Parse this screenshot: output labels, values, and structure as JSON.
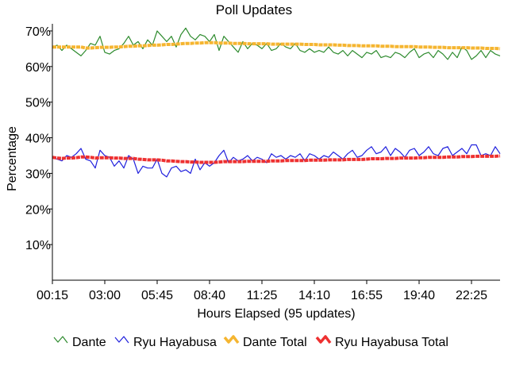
{
  "chart_data": {
    "type": "line",
    "title": "Poll Updates",
    "xlabel": "Hours Elapsed (95 updates)",
    "ylabel": "Percentage",
    "ylim": [
      0,
      72
    ],
    "yticks": [
      {
        "value": 10,
        "label": "10%"
      },
      {
        "value": 20,
        "label": "20%"
      },
      {
        "value": 30,
        "label": "30%"
      },
      {
        "value": 40,
        "label": "40%"
      },
      {
        "value": 50,
        "label": "50%"
      },
      {
        "value": 60,
        "label": "60%"
      },
      {
        "value": 70,
        "label": "70%"
      }
    ],
    "xlim": [
      0,
      94
    ],
    "xticks": [
      {
        "index": 0,
        "label": "00:15"
      },
      {
        "index": 11,
        "label": "03:00"
      },
      {
        "index": 22,
        "label": "05:45"
      },
      {
        "index": 33,
        "label": "08:40"
      },
      {
        "index": 44,
        "label": "11:25"
      },
      {
        "index": 55,
        "label": "14:10"
      },
      {
        "index": 66,
        "label": "16:55"
      },
      {
        "index": 77,
        "label": "19:40"
      },
      {
        "index": 88,
        "label": "22:25"
      }
    ],
    "grid": false,
    "legend_position": "bottom",
    "series": [
      {
        "name": "Dante",
        "color": "#2e8b2e",
        "style": "thin",
        "values": [
          65.5,
          66.0,
          64.5,
          66.0,
          65.0,
          64.0,
          63.0,
          64.5,
          66.5,
          66.0,
          68.5,
          64.0,
          63.5,
          64.5,
          65.0,
          66.5,
          68.5,
          66.0,
          67.0,
          65.0,
          67.5,
          66.0,
          70.0,
          68.5,
          67.0,
          68.5,
          65.5,
          69.0,
          70.8,
          68.5,
          67.5,
          69.0,
          68.5,
          67.0,
          69.0,
          64.5,
          68.5,
          67.0,
          65.5,
          64.0,
          67.0,
          65.0,
          66.5,
          66.0,
          65.0,
          66.5,
          64.5,
          65.0,
          66.5,
          65.5,
          65.0,
          66.5,
          64.5,
          64.0,
          65.0,
          64.0,
          64.5,
          64.0,
          65.5,
          64.0,
          63.5,
          64.5,
          63.0,
          64.5,
          63.5,
          62.5,
          64.0,
          63.5,
          64.5,
          62.5,
          63.0,
          62.5,
          64.0,
          63.5,
          62.5,
          64.0,
          65.0,
          62.5,
          63.5,
          64.0,
          62.5,
          64.5,
          63.5,
          62.0,
          64.0,
          62.5,
          65.5,
          64.5,
          62.0,
          63.0,
          64.5,
          62.5,
          64.5,
          63.5,
          63.0
        ]
      },
      {
        "name": "Ryu Hayabusa",
        "color": "#2020dd",
        "style": "thin",
        "values": [
          34.5,
          34.0,
          33.5,
          35.0,
          34.5,
          35.5,
          37.0,
          34.0,
          33.5,
          31.5,
          36.5,
          35.0,
          34.5,
          32.0,
          33.5,
          31.5,
          35.0,
          34.0,
          30.0,
          32.0,
          31.5,
          31.5,
          34.0,
          30.0,
          29.0,
          31.5,
          32.0,
          30.5,
          31.0,
          30.0,
          34.0,
          31.0,
          33.0,
          32.0,
          33.0,
          35.0,
          36.5,
          33.0,
          34.5,
          33.5,
          34.0,
          35.0,
          33.5,
          34.5,
          34.0,
          33.0,
          35.5,
          34.5,
          35.0,
          34.0,
          35.0,
          34.5,
          35.5,
          33.5,
          35.5,
          35.0,
          34.0,
          35.0,
          34.5,
          36.0,
          35.0,
          34.0,
          35.5,
          36.5,
          34.5,
          35.0,
          36.5,
          37.5,
          35.5,
          36.0,
          37.5,
          35.0,
          37.0,
          36.0,
          34.5,
          36.5,
          37.0,
          35.0,
          36.0,
          37.5,
          35.5,
          35.0,
          37.0,
          37.5,
          35.0,
          36.0,
          37.0,
          35.5,
          38.0,
          38.0,
          35.0,
          35.5,
          35.0,
          37.5,
          35.5
        ]
      },
      {
        "name": "Dante Total",
        "color": "#f5b530",
        "style": "thick",
        "values": [
          65.5,
          65.5,
          65.5,
          65.5,
          65.5,
          65.5,
          65.5,
          65.2,
          65.2,
          65.3,
          65.4,
          65.4,
          65.4,
          65.5,
          65.5,
          65.6,
          65.7,
          65.7,
          65.8,
          65.8,
          65.9,
          66.0,
          66.0,
          66.1,
          66.2,
          66.2,
          66.3,
          66.4,
          66.5,
          66.5,
          66.6,
          66.6,
          66.7,
          66.7,
          66.7,
          66.6,
          66.6,
          66.6,
          66.5,
          66.5,
          66.5,
          66.4,
          66.4,
          66.4,
          66.4,
          66.4,
          66.3,
          66.3,
          66.3,
          66.3,
          66.3,
          66.3,
          66.3,
          66.2,
          66.2,
          66.2,
          66.1,
          66.1,
          66.1,
          66.1,
          66.0,
          66.0,
          65.9,
          65.9,
          65.9,
          65.8,
          65.8,
          65.8,
          65.8,
          65.7,
          65.7,
          65.7,
          65.6,
          65.6,
          65.6,
          65.6,
          65.6,
          65.5,
          65.5,
          65.5,
          65.4,
          65.4,
          65.4,
          65.3,
          65.3,
          65.3,
          65.3,
          65.3,
          65.2,
          65.2,
          65.2,
          65.1,
          65.1,
          65.1,
          65.0
        ]
      },
      {
        "name": "Ryu Hayabusa Total",
        "color": "#ee3030",
        "style": "thick",
        "values": [
          34.5,
          34.3,
          34.2,
          34.3,
          34.3,
          34.4,
          34.6,
          34.6,
          34.5,
          34.3,
          34.4,
          34.4,
          34.4,
          34.3,
          34.3,
          34.2,
          34.2,
          34.2,
          34.0,
          33.9,
          33.8,
          33.8,
          33.8,
          33.7,
          33.5,
          33.5,
          33.4,
          33.3,
          33.3,
          33.2,
          33.2,
          33.1,
          33.1,
          33.1,
          33.1,
          33.2,
          33.3,
          33.3,
          33.3,
          33.3,
          33.3,
          33.4,
          33.4,
          33.4,
          33.4,
          33.4,
          33.5,
          33.5,
          33.5,
          33.6,
          33.6,
          33.6,
          33.6,
          33.6,
          33.7,
          33.7,
          33.7,
          33.7,
          33.8,
          33.8,
          33.8,
          33.8,
          33.9,
          33.9,
          33.9,
          33.9,
          34.0,
          34.1,
          34.1,
          34.1,
          34.2,
          34.2,
          34.2,
          34.3,
          34.3,
          34.3,
          34.3,
          34.4,
          34.4,
          34.5,
          34.5,
          34.5,
          34.5,
          34.6,
          34.6,
          34.6,
          34.7,
          34.7,
          34.7,
          34.8,
          34.8,
          34.8,
          34.8,
          34.8,
          34.9
        ]
      }
    ]
  }
}
